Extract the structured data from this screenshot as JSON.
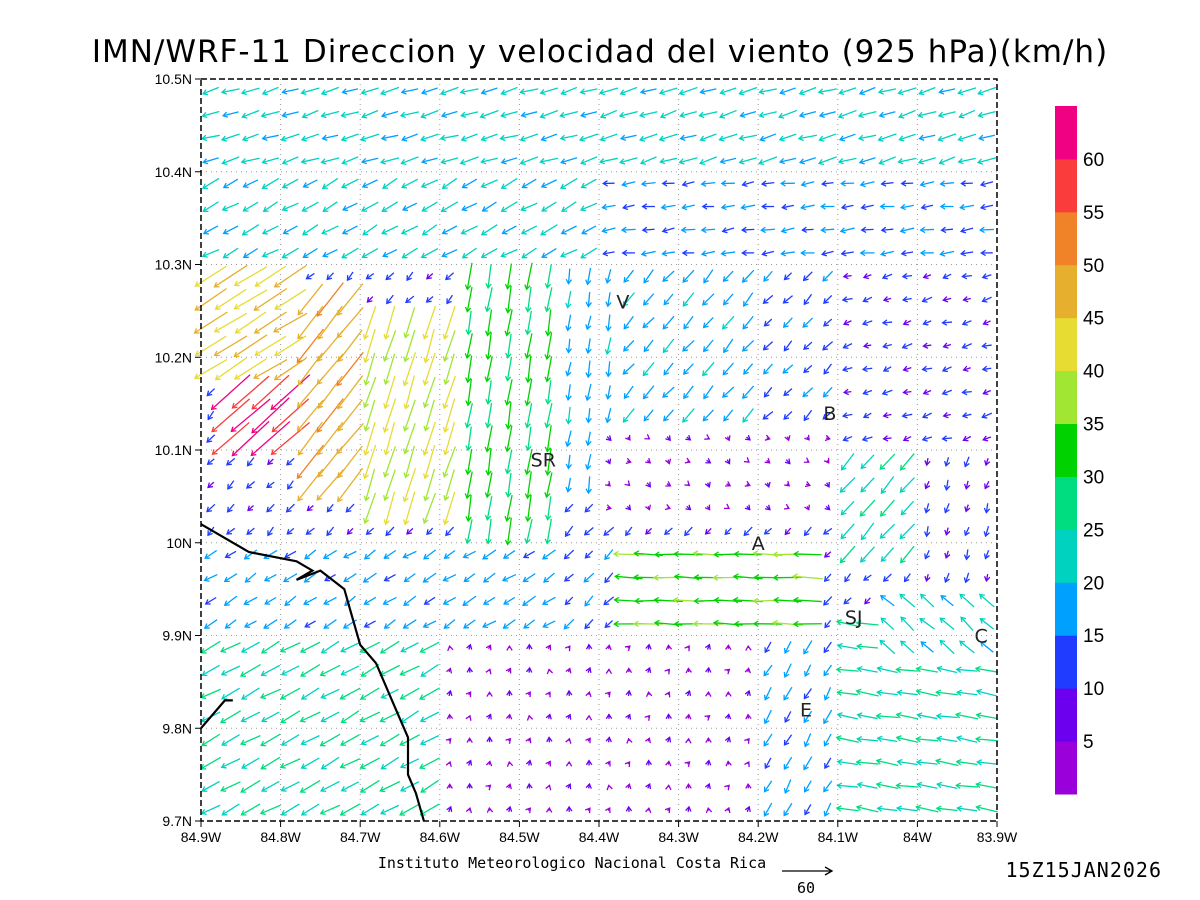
{
  "title": "IMN/WRF-11 Direccion y velocidad del viento (925 hPa)(km/h)",
  "credit": "Instituto Meteorologico Nacional Costa Rica",
  "timestamp": "15Z15JAN2026",
  "reference_vector": {
    "label": "60",
    "value": 60
  },
  "map": {
    "lon_range": [
      -84.9,
      -83.9
    ],
    "lat_range": [
      9.7,
      10.5
    ],
    "x_ticks": [
      "84.9W",
      "84.8W",
      "84.7W",
      "84.6W",
      "84.5W",
      "84.4W",
      "84.3W",
      "84.2W",
      "84.1W",
      "84W",
      "83.9W"
    ],
    "y_ticks": [
      "9.7N",
      "9.8N",
      "9.9N",
      "10N",
      "10.1N",
      "10.2N",
      "10.3N",
      "10.4N",
      "10.5N"
    ],
    "grid": "dotted",
    "places": [
      {
        "label": "V",
        "lon": -84.37,
        "lat": 10.26
      },
      {
        "label": "SR",
        "lon": -84.47,
        "lat": 10.09
      },
      {
        "label": "B",
        "lon": -84.11,
        "lat": 10.14
      },
      {
        "label": "A",
        "lon": -84.2,
        "lat": 10.0
      },
      {
        "label": "SJ",
        "lon": -84.08,
        "lat": 9.92
      },
      {
        "label": "C",
        "lon": -83.92,
        "lat": 9.9
      },
      {
        "label": "E",
        "lon": -84.14,
        "lat": 9.82
      }
    ],
    "coastline": [
      [
        -84.9,
        10.02
      ],
      [
        -84.84,
        9.99
      ],
      [
        -84.78,
        9.98
      ],
      [
        -84.76,
        9.97
      ],
      [
        -84.78,
        9.96
      ],
      [
        -84.75,
        9.97
      ],
      [
        -84.72,
        9.95
      ],
      [
        -84.71,
        9.92
      ],
      [
        -84.7,
        9.89
      ],
      [
        -84.68,
        9.87
      ],
      [
        -84.66,
        9.83
      ],
      [
        -84.64,
        9.79
      ],
      [
        -84.64,
        9.75
      ],
      [
        -84.63,
        9.73
      ],
      [
        -84.62,
        9.7
      ]
    ],
    "coast_inlet": [
      [
        -84.9,
        9.8
      ],
      [
        -84.87,
        9.83
      ],
      [
        -84.86,
        9.83
      ]
    ]
  },
  "colorbar": {
    "ticks": [
      5,
      10,
      15,
      20,
      25,
      30,
      35,
      40,
      45,
      50,
      55,
      60
    ],
    "bins": [
      {
        "max": 5,
        "color": "#9a00d9"
      },
      {
        "max": 10,
        "color": "#6c00ee"
      },
      {
        "max": 15,
        "color": "#1f3cff"
      },
      {
        "max": 20,
        "color": "#00a0ff"
      },
      {
        "max": 25,
        "color": "#00d2c0"
      },
      {
        "max": 30,
        "color": "#00dc80"
      },
      {
        "max": 35,
        "color": "#00d200"
      },
      {
        "max": 40,
        "color": "#a0e632"
      },
      {
        "max": 45,
        "color": "#e6dc32"
      },
      {
        "max": 50,
        "color": "#e6af2d"
      },
      {
        "max": 55,
        "color": "#f08228"
      },
      {
        "max": 60,
        "color": "#fa3c3c"
      },
      {
        "max": 65,
        "color": "#f00082"
      }
    ]
  },
  "chart_data": {
    "type": "vector-field",
    "title": "IMN/WRF-11 Direccion y velocidad del viento (925 hPa)(km/h)",
    "units": "km/h",
    "level": "925 hPa",
    "x_range": [
      -84.9,
      -83.9
    ],
    "y_range": [
      9.7,
      10.5
    ],
    "regimes": [
      {
        "lon_min": -84.9,
        "lon_max": -83.9,
        "lat_min": 10.4,
        "lat_max": 10.5,
        "u": -20,
        "v": -6
      },
      {
        "lon_min": -84.9,
        "lon_max": -84.4,
        "lat_min": 10.3,
        "lat_max": 10.4,
        "u": -18,
        "v": -10
      },
      {
        "lon_min": -84.4,
        "lon_max": -83.9,
        "lat_min": 10.3,
        "lat_max": 10.4,
        "u": -15,
        "v": -2
      },
      {
        "lon_min": -84.9,
        "lon_max": -84.78,
        "lat_min": 10.18,
        "lat_max": 10.3,
        "u": -38,
        "v": -24
      },
      {
        "lon_min": -84.78,
        "lon_max": -84.7,
        "lat_min": 10.05,
        "lat_max": 10.28,
        "u": -30,
        "v": -38
      },
      {
        "lon_min": -84.7,
        "lon_max": -84.58,
        "lat_min": 10.03,
        "lat_max": 10.25,
        "u": -12,
        "v": -38
      },
      {
        "lon_min": -84.88,
        "lon_max": -84.78,
        "lat_min": 10.1,
        "lat_max": 10.18,
        "u": -45,
        "v": -40
      },
      {
        "lon_min": -84.58,
        "lon_max": -84.46,
        "lat_min": 9.98,
        "lat_max": 10.3,
        "u": -5,
        "v": -30
      },
      {
        "lon_min": -84.46,
        "lon_max": -84.38,
        "lat_min": 10.05,
        "lat_max": 10.3,
        "u": -3,
        "v": -18
      },
      {
        "lon_min": -84.38,
        "lon_max": -84.2,
        "lat_min": 10.12,
        "lat_max": 10.3,
        "u": -12,
        "v": -14
      },
      {
        "lon_min": -84.2,
        "lon_max": -84.1,
        "lat_min": 10.1,
        "lat_max": 10.3,
        "u": -10,
        "v": -10
      },
      {
        "lon_min": -84.1,
        "lon_max": -83.9,
        "lat_min": 10.1,
        "lat_max": 10.3,
        "u": -10,
        "v": -3
      },
      {
        "lon_min": -84.4,
        "lon_max": -84.1,
        "lat_min": 10.02,
        "lat_max": 10.12,
        "u": 3,
        "v": -3
      },
      {
        "lon_min": -84.1,
        "lon_max": -84.0,
        "lat_min": 9.98,
        "lat_max": 10.1,
        "u": -16,
        "v": -18
      },
      {
        "lon_min": -84.0,
        "lon_max": -83.9,
        "lat_min": 9.95,
        "lat_max": 10.1,
        "u": -3,
        "v": -10
      },
      {
        "lon_min": -84.38,
        "lon_max": -84.12,
        "lat_min": 9.91,
        "lat_max": 9.99,
        "u": -34,
        "v": 1
      },
      {
        "lon_min": -84.46,
        "lon_max": -84.38,
        "lat_min": 9.9,
        "lat_max": 10.02,
        "u": -10,
        "v": -10
      },
      {
        "lon_min": -84.9,
        "lon_max": -84.46,
        "lat_min": 9.9,
        "lat_max": 10.0,
        "u": -14,
        "v": -9
      },
      {
        "lon_min": -84.9,
        "lon_max": -84.6,
        "lat_min": 9.7,
        "lat_max": 9.9,
        "u": -22,
        "v": -12
      },
      {
        "lon_min": -84.6,
        "lon_max": -84.2,
        "lat_min": 9.7,
        "lat_max": 9.9,
        "u": 1,
        "v": 4
      },
      {
        "lon_min": -84.2,
        "lon_max": -84.1,
        "lat_min": 9.7,
        "lat_max": 9.9,
        "u": -8,
        "v": -14
      },
      {
        "lon_min": -84.1,
        "lon_max": -83.9,
        "lat_min": 9.7,
        "lat_max": 9.92,
        "u": -25,
        "v": 4
      },
      {
        "lon_min": -84.06,
        "lon_max": -83.9,
        "lat_min": 9.88,
        "lat_max": 9.96,
        "u": -16,
        "v": 14
      }
    ],
    "default_vector": {
      "u": -8,
      "v": -8
    },
    "arrow_spacing_lon": 0.025,
    "arrow_spacing_lat": 0.025
  }
}
